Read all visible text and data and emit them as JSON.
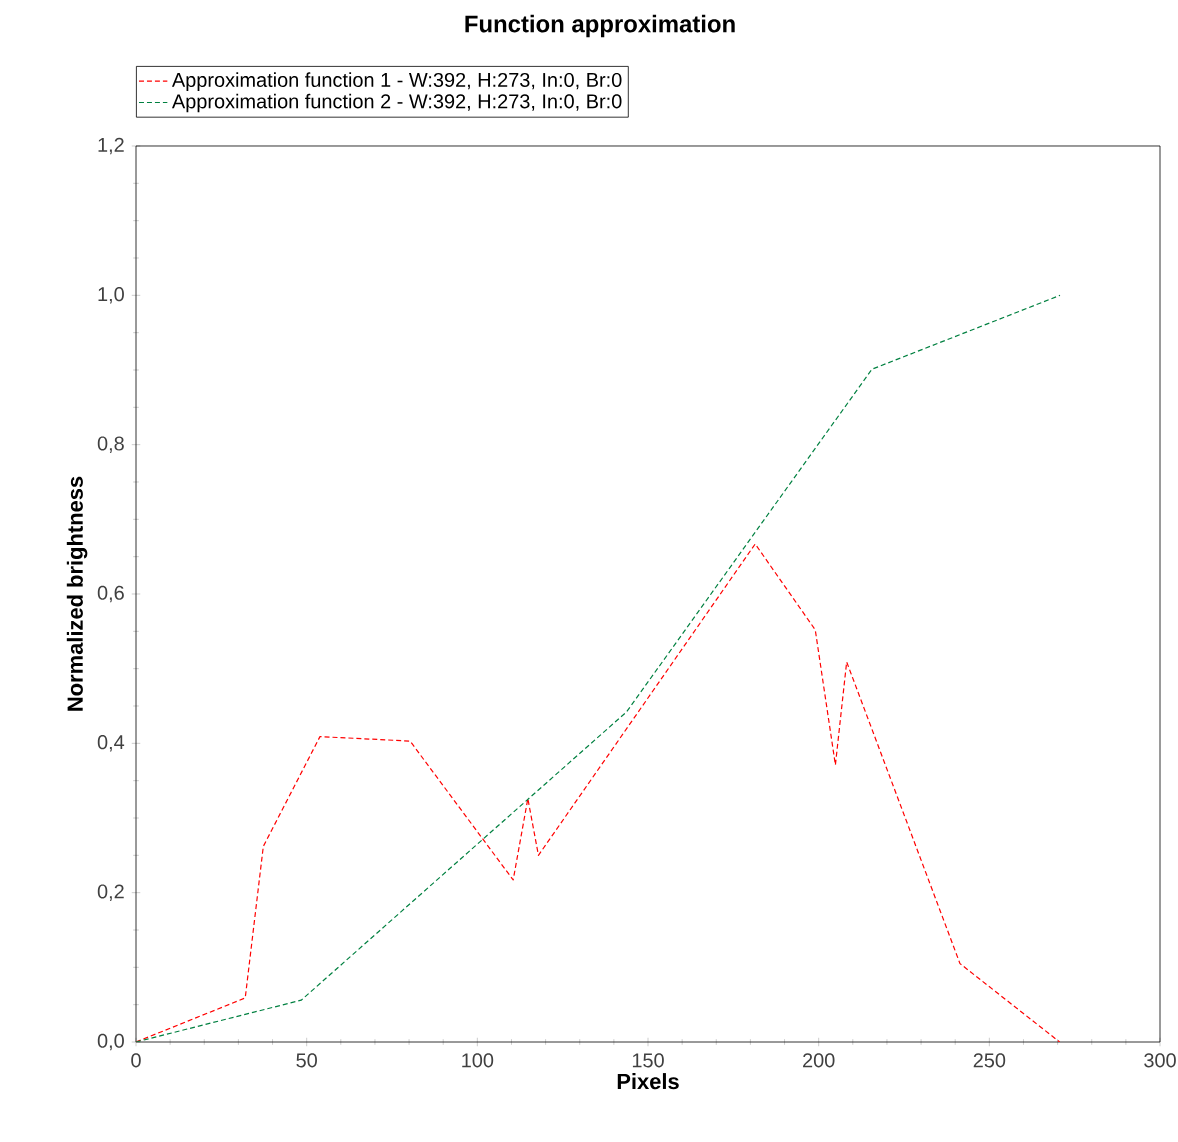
{
  "chart_data": {
    "type": "line",
    "title": "Function approximation",
    "xlabel": "Pixels",
    "ylabel": "Normalized brightness",
    "xlim": [
      0,
      300
    ],
    "xticks": [
      0,
      50,
      100,
      150,
      200,
      250,
      300
    ],
    "ylim": [
      0,
      1.2
    ],
    "yticks": [
      {
        "value": 0,
        "label": "0,0"
      },
      {
        "value": 0.2,
        "label": "0,2"
      },
      {
        "value": 0.4,
        "label": "0,4"
      },
      {
        "value": 0.6,
        "label": "0,6"
      },
      {
        "value": 0.8,
        "label": "0,8"
      },
      {
        "value": 1.0,
        "label": "1,0"
      },
      {
        "value": 1.2,
        "label": "1,2"
      }
    ],
    "legend": "top left",
    "line_style": "dashed",
    "grid": false,
    "series": [
      {
        "name": "Approximation function  1 - W:392, H:273, In:0, Br:0",
        "color": "#ff0000",
        "x": [
          0,
          32,
          37.3,
          53.9,
          80.3,
          110.5,
          114.8,
          117.9,
          181.4,
          199,
          204.9,
          208.2,
          241.4,
          270.6
        ],
        "values": [
          0,
          0.059,
          0.262,
          0.409,
          0.403,
          0.217,
          0.326,
          0.25,
          0.667,
          0.552,
          0.371,
          0.509,
          0.105,
          0
        ]
      },
      {
        "name": "Approximation function  2 - W:392, H:273, In:0, Br:0",
        "color": "#008040",
        "x": [
          0,
          48.4,
          143.7,
          215.6,
          270.7
        ],
        "values": [
          0,
          0.056,
          0.442,
          0.901,
          1.0
        ]
      }
    ]
  }
}
